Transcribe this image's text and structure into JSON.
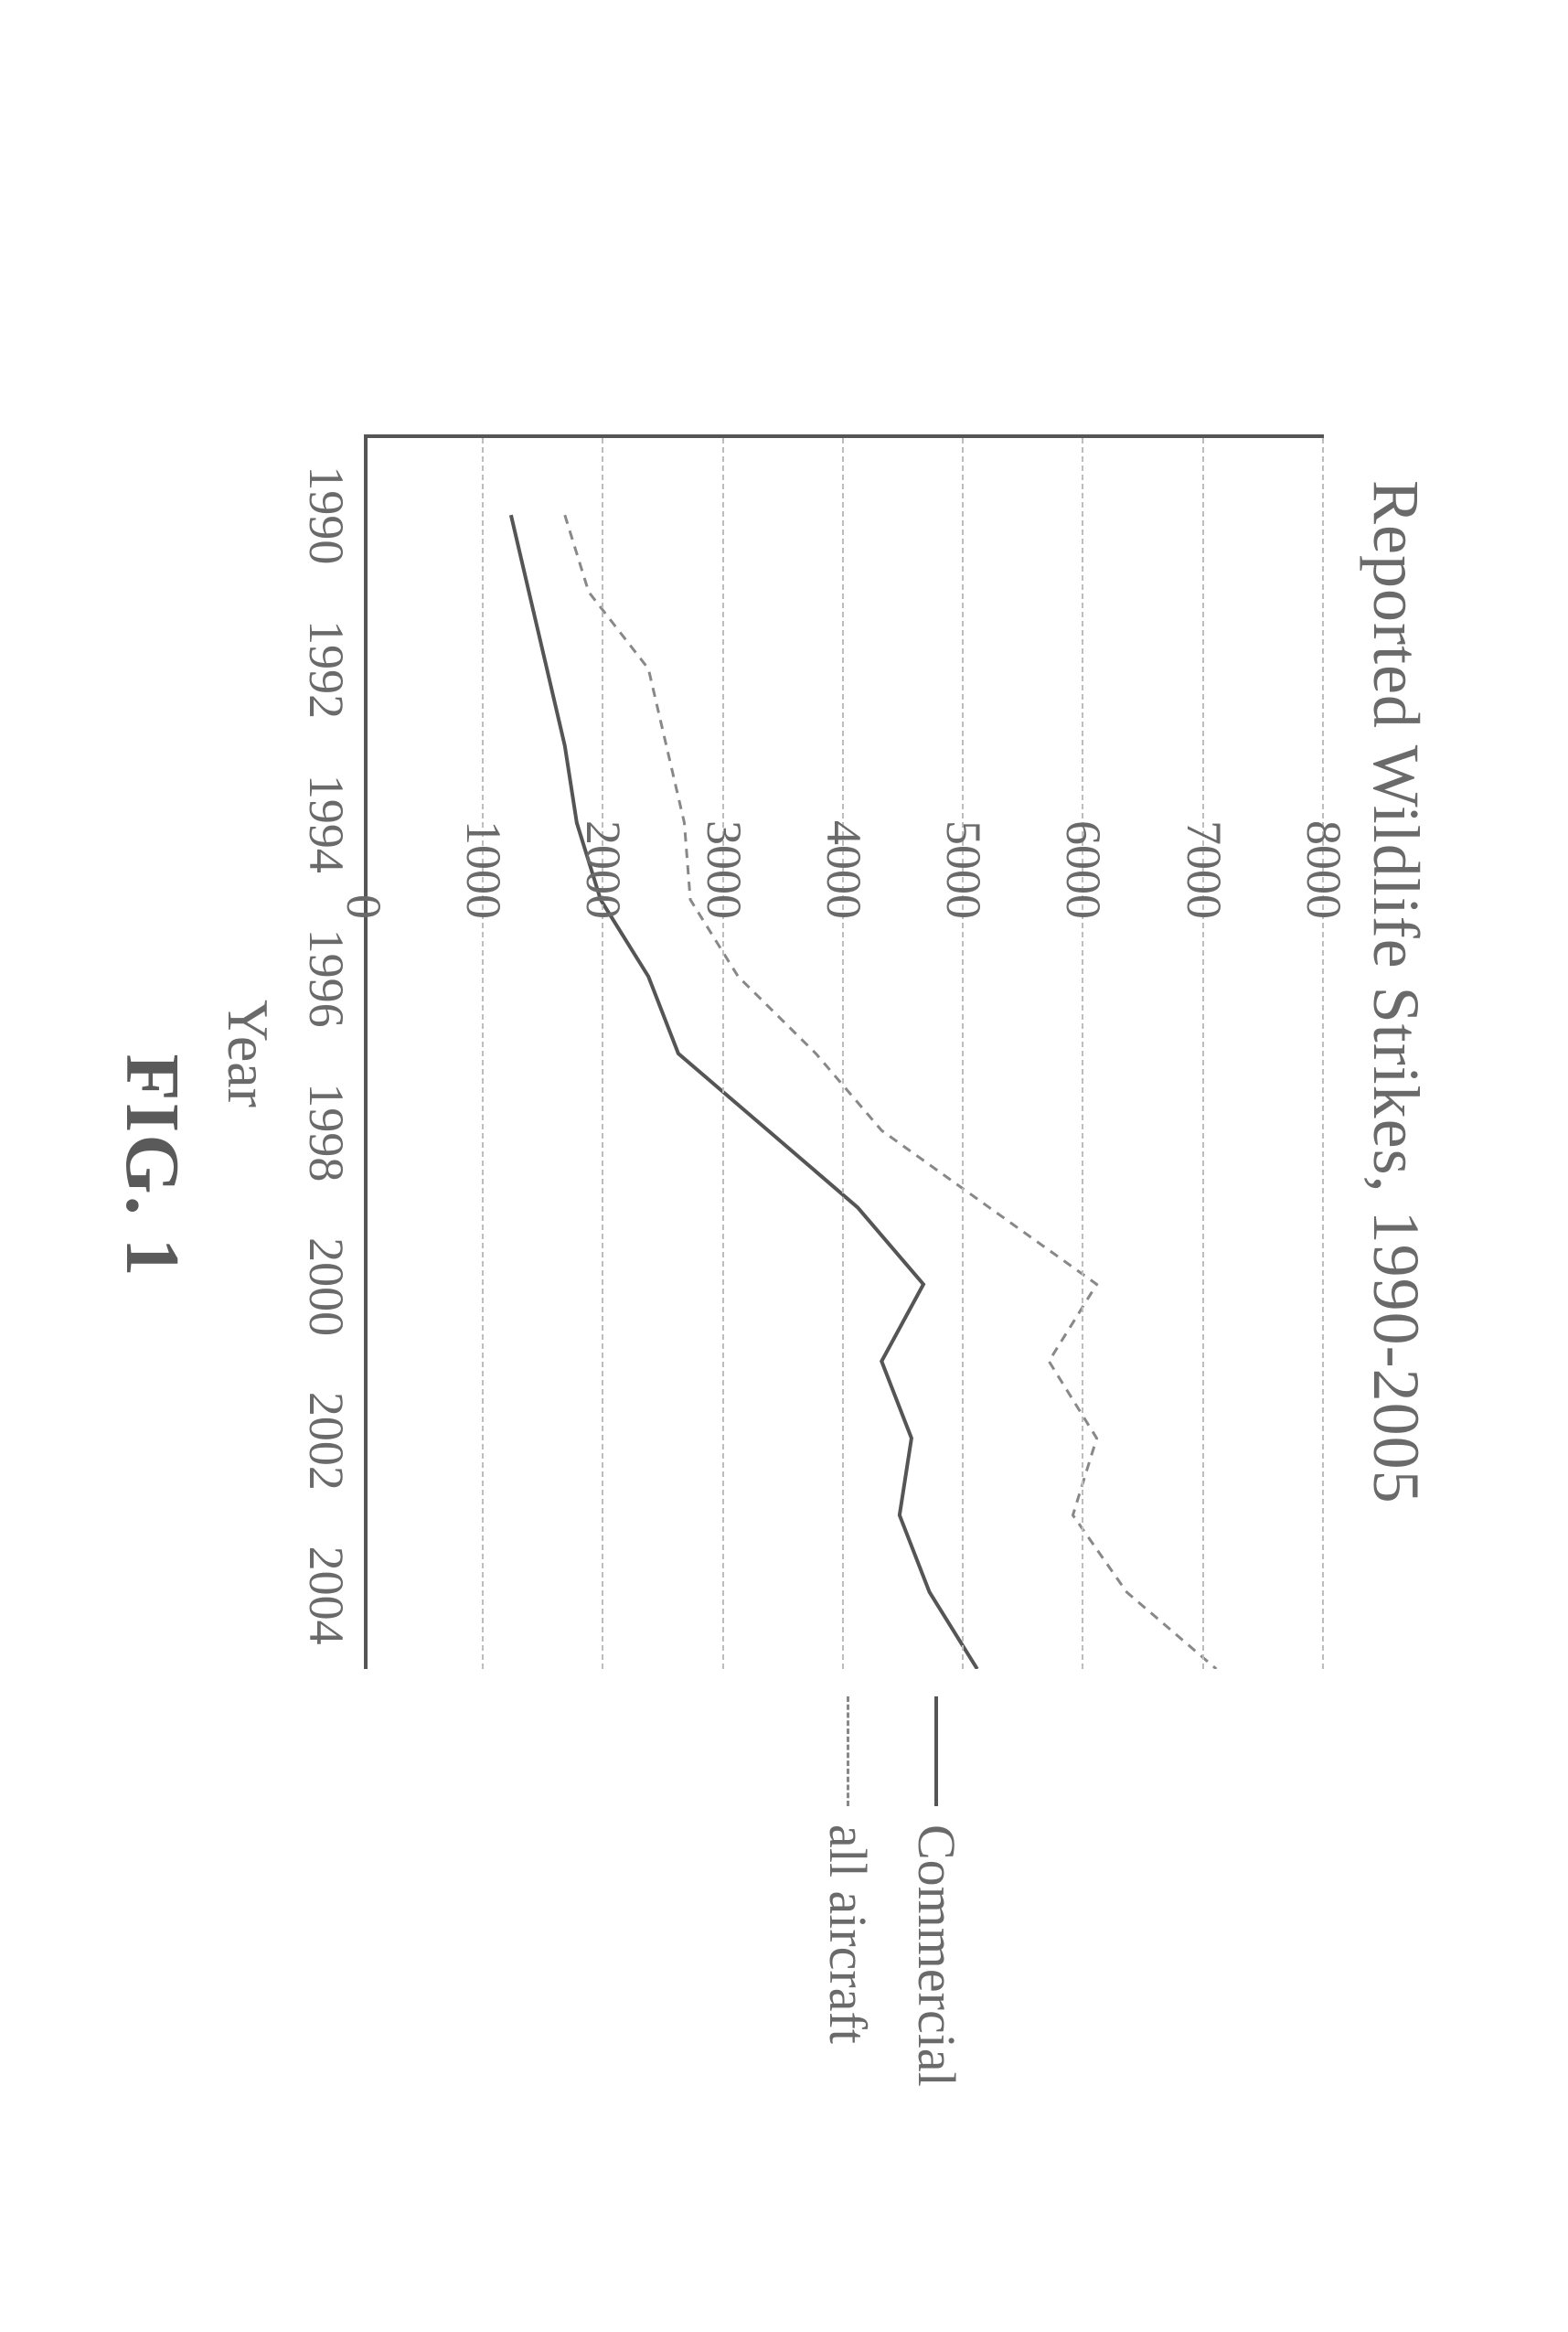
{
  "chart": {
    "type": "line",
    "title": "Reported Wildlife Strikes, 1990-2005",
    "title_fontsize": 72,
    "xlabel": "Year",
    "xlabel_fontsize": 64,
    "figure_label": "FIG. 1",
    "figure_label_fontsize": 84,
    "background_color": "#ffffff",
    "text_color": "#6a6a6a",
    "grid_color": "#bdbdbd",
    "axis_color": "#555555",
    "xlim": [
      1989,
      2005
    ],
    "ylim": [
      0,
      8000
    ],
    "ytick_step": 1000,
    "yticks": [
      0,
      1000,
      2000,
      3000,
      4000,
      5000,
      6000,
      7000,
      8000
    ],
    "xticks": [
      1990,
      1992,
      1994,
      1996,
      1998,
      2000,
      2002,
      2004
    ],
    "tick_fontsize": 54,
    "line_width_commercial": 4,
    "line_width_all": 3,
    "all_dash": "10,8",
    "series": {
      "commercial": {
        "label": "Commercial",
        "color": "#555555",
        "x": [
          1990,
          1991,
          1992,
          1993,
          1994,
          1995,
          1996,
          1997,
          1998,
          1999,
          2000,
          2001,
          2002,
          2003,
          2004,
          2005
        ],
        "y": [
          1200,
          1350,
          1500,
          1650,
          1750,
          1950,
          2350,
          2600,
          3350,
          4100,
          4650,
          4300,
          4550,
          4450,
          4700,
          5100
        ]
      },
      "all": {
        "label": "all aircraft",
        "color": "#888888",
        "x": [
          1990,
          1991,
          1992,
          1993,
          1994,
          1995,
          1996,
          1997,
          1998,
          1999,
          2000,
          2001,
          2002,
          2003,
          2004,
          2005
        ],
        "y": [
          1650,
          1850,
          2350,
          2500,
          2650,
          2700,
          3100,
          3750,
          4300,
          5200,
          6100,
          5700,
          6100,
          5900,
          6350,
          7100
        ]
      }
    },
    "legend": {
      "items": [
        {
          "key": "commercial",
          "label": "Commercial"
        },
        {
          "key": "all",
          "label": "all aircraft"
        }
      ],
      "fontsize": 58
    }
  }
}
